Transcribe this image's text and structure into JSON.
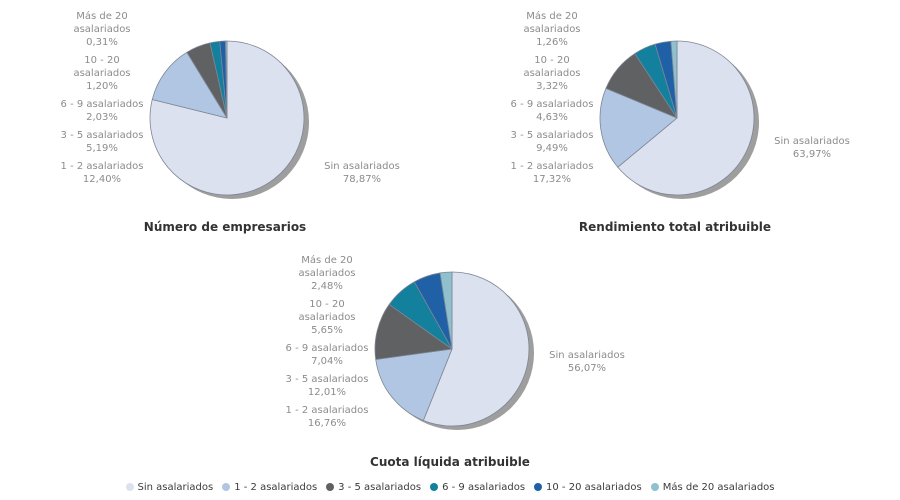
{
  "colors": {
    "series": [
      "#dce1f0",
      "#b0c6e2",
      "#5f6163",
      "#13809e",
      "#1f60a7",
      "#8fc0ce"
    ],
    "shadow": "#9e9e9e",
    "slice_outline": "#7d8694",
    "label_text": "#8c8c8c",
    "title_text": "#333333",
    "legend_text": "#3c3c3c",
    "background": "#ffffff"
  },
  "legend": {
    "items": [
      "Sin asalariados",
      "1 - 2 asalariados",
      "3 - 5 asalariados",
      "6 - 9 asalariados",
      "10 - 20 asalariados",
      "Más de 20 asalariados"
    ]
  },
  "chart_data": [
    {
      "type": "pie",
      "title": "Número de empresarios",
      "categories": [
        "Sin asalariados",
        "1 - 2 asalariados",
        "3 - 5 asalariados",
        "6 - 9 asalariados",
        "10 - 20 asalariados",
        "Más de 20 asalariados"
      ],
      "values": [
        78.87,
        12.4,
        5.19,
        2.03,
        1.2,
        0.31
      ],
      "value_labels": [
        "78,87%",
        "12,40%",
        "5,19%",
        "2,03%",
        "1,20%",
        "0,31%"
      ],
      "start_angle": "12-o-clock",
      "direction": "clockwise",
      "labels": {
        "right": "Sin asalariados\n78,87%",
        "left": [
          "Más de 20\nasalariados\n0,31%",
          "10 - 20\nasalariados\n1,20%",
          "6 - 9 asalariados\n2,03%",
          "3 - 5 asalariados\n5,19%",
          "1 - 2 asalariados\n12,40%"
        ]
      }
    },
    {
      "type": "pie",
      "title": "Rendimiento total atribuible",
      "categories": [
        "Sin asalariados",
        "1 - 2 asalariados",
        "3 - 5 asalariados",
        "6 - 9 asalariados",
        "10 - 20 asalariados",
        "Más de 20 asalariados"
      ],
      "values": [
        63.97,
        17.32,
        9.49,
        4.63,
        3.32,
        1.26
      ],
      "value_labels": [
        "63,97%",
        "17,32%",
        "9,49%",
        "4,63%",
        "3,32%",
        "1,26%"
      ],
      "start_angle": "12-o-clock",
      "direction": "clockwise",
      "labels": {
        "right": "Sin asalariados\n63,97%",
        "left": [
          "Más de 20\nasalariados\n1,26%",
          "10 - 20\nasalariados\n3,32%",
          "6 - 9 asalariados\n4,63%",
          "3 - 5 asalariados\n9,49%",
          "1 - 2 asalariados\n17,32%"
        ]
      }
    },
    {
      "type": "pie",
      "title": "Cuota líquida atribuible",
      "categories": [
        "Sin asalariados",
        "1 - 2 asalariados",
        "3 - 5 asalariados",
        "6 - 9 asalariados",
        "10 - 20 asalariados",
        "Más de 20 asalariados"
      ],
      "values": [
        56.07,
        16.76,
        12.01,
        7.04,
        5.65,
        2.48
      ],
      "value_labels": [
        "56,07%",
        "16,76%",
        "12,01%",
        "7,04%",
        "5,65%",
        "2,48%"
      ],
      "start_angle": "12-o-clock",
      "direction": "clockwise",
      "labels": {
        "right": "Sin asalariados\n56,07%",
        "left": [
          "Más de 20\nasalariados\n2,48%",
          "10 - 20\nasalariados\n5,65%",
          "6 - 9 asalariados\n7,04%",
          "3 - 5 asalariados\n12,01%",
          "1 - 2 asalariados\n16,76%"
        ]
      }
    }
  ]
}
